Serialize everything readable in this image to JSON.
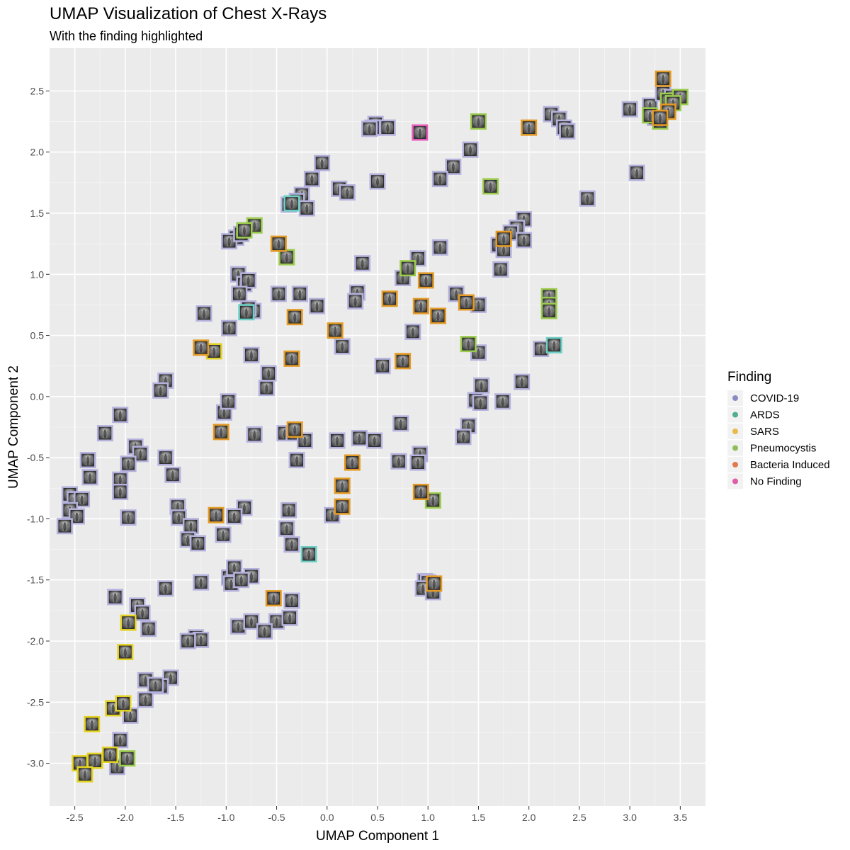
{
  "chart_data": {
    "type": "scatter",
    "title": "UMAP Visualization of Chest X-Rays",
    "subtitle": "With the finding highlighted",
    "xlabel": "UMAP Component 1",
    "ylabel": "UMAP Component 2",
    "xlim": [
      -2.75,
      3.75
    ],
    "ylim": [
      -3.35,
      2.85
    ],
    "x_ticks": [
      -2.5,
      -2.0,
      -1.5,
      -1.0,
      -0.5,
      0.0,
      0.5,
      1.0,
      1.5,
      2.0,
      2.5,
      3.0,
      3.5
    ],
    "x_tick_labels": [
      "-2.5",
      "-2.0",
      "-1.5",
      "-1.0",
      "-0.5",
      "0.0",
      "0.5",
      "1.0",
      "1.5",
      "2.0",
      "2.5",
      "3.0",
      "3.5"
    ],
    "y_ticks": [
      -3.0,
      -2.5,
      -2.0,
      -1.5,
      -1.0,
      -0.5,
      0.0,
      0.5,
      1.0,
      1.5,
      2.0,
      2.5
    ],
    "y_tick_labels": [
      "-3.0",
      "-2.5",
      "-2.0",
      "-1.5",
      "-1.0",
      "-0.5",
      "0.0",
      "0.5",
      "1.0",
      "1.5",
      "2.0",
      "2.5"
    ],
    "grid": true,
    "marker": "chest-xray-thumbnail",
    "legend": {
      "title": "Finding",
      "position": "right",
      "entries": [
        {
          "label": "COVID-19",
          "color": "#8B8BC4"
        },
        {
          "label": "ARDS",
          "color": "#52AE8F"
        },
        {
          "label": "SARS",
          "color": "#E9B949"
        },
        {
          "label": "Pneumocystis",
          "color": "#8DBF5B"
        },
        {
          "label": "Bacteria Induced",
          "color": "#E07A4C"
        },
        {
          "label": "No Finding",
          "color": "#DE5CA8"
        }
      ]
    },
    "series": [
      {
        "name": "COVID-19",
        "color": "#B4B2DC",
        "points": [
          [
            3.0,
            2.35
          ],
          [
            3.2,
            2.38
          ],
          [
            3.33,
            2.48
          ],
          [
            3.42,
            2.45
          ],
          [
            3.25,
            2.28
          ],
          [
            3.07,
            1.83
          ],
          [
            2.58,
            1.62
          ],
          [
            2.22,
            2.31
          ],
          [
            2.3,
            2.27
          ],
          [
            2.35,
            2.2
          ],
          [
            2.38,
            2.17
          ],
          [
            0.48,
            2.23
          ],
          [
            0.45,
            2.2
          ],
          [
            0.6,
            2.2
          ],
          [
            0.42,
            2.19
          ],
          [
            1.42,
            2.02
          ],
          [
            1.25,
            1.88
          ],
          [
            1.12,
            1.78
          ],
          [
            -0.05,
            1.91
          ],
          [
            -0.15,
            1.78
          ],
          [
            0.12,
            1.7
          ],
          [
            0.2,
            1.67
          ],
          [
            0.5,
            1.76
          ],
          [
            -0.25,
            1.65
          ],
          [
            -0.3,
            1.6
          ],
          [
            -0.38,
            1.57
          ],
          [
            -0.2,
            1.54
          ],
          [
            -0.9,
            1.3
          ],
          [
            -0.97,
            1.27
          ],
          [
            -0.85,
            1.33
          ],
          [
            1.95,
            1.45
          ],
          [
            1.88,
            1.38
          ],
          [
            1.82,
            1.34
          ],
          [
            1.95,
            1.28
          ],
          [
            1.7,
            1.24
          ],
          [
            1.75,
            1.2
          ],
          [
            1.12,
            1.22
          ],
          [
            0.9,
            1.13
          ],
          [
            0.35,
            1.09
          ],
          [
            1.72,
            1.04
          ],
          [
            0.75,
            0.97
          ],
          [
            -0.88,
            1.0
          ],
          [
            -0.82,
            0.92
          ],
          [
            -0.78,
            0.95
          ],
          [
            -0.87,
            0.84
          ],
          [
            -0.48,
            0.84
          ],
          [
            -0.27,
            0.84
          ],
          [
            -0.1,
            0.74
          ],
          [
            0.3,
            0.85
          ],
          [
            0.28,
            0.78
          ],
          [
            1.28,
            0.84
          ],
          [
            1.5,
            0.75
          ],
          [
            -1.22,
            0.68
          ],
          [
            -0.73,
            0.7
          ],
          [
            -0.78,
            0.72
          ],
          [
            -0.97,
            0.56
          ],
          [
            0.85,
            0.53
          ],
          [
            0.15,
            0.41
          ],
          [
            1.5,
            0.36
          ],
          [
            -0.75,
            0.34
          ],
          [
            0.55,
            0.25
          ],
          [
            2.12,
            0.39
          ],
          [
            -1.6,
            0.13
          ],
          [
            -1.65,
            0.05
          ],
          [
            -0.58,
            0.19
          ],
          [
            -0.6,
            0.07
          ],
          [
            1.53,
            0.09
          ],
          [
            1.47,
            -0.03
          ],
          [
            1.52,
            -0.05
          ],
          [
            1.74,
            -0.04
          ],
          [
            1.93,
            0.12
          ],
          [
            -2.05,
            -0.15
          ],
          [
            -1.02,
            -0.13
          ],
          [
            -0.98,
            -0.04
          ],
          [
            -2.2,
            -0.3
          ],
          [
            -0.72,
            -0.31
          ],
          [
            -0.42,
            -0.3
          ],
          [
            -0.33,
            -0.3
          ],
          [
            -0.22,
            -0.36
          ],
          [
            0.1,
            -0.36
          ],
          [
            0.32,
            -0.34
          ],
          [
            0.47,
            -0.36
          ],
          [
            0.73,
            -0.22
          ],
          [
            1.4,
            -0.24
          ],
          [
            1.35,
            -0.33
          ],
          [
            -1.9,
            -0.41
          ],
          [
            -1.85,
            -0.47
          ],
          [
            -1.97,
            -0.55
          ],
          [
            -1.6,
            -0.5
          ],
          [
            -2.37,
            -0.52
          ],
          [
            -2.35,
            -0.66
          ],
          [
            -1.53,
            -0.64
          ],
          [
            -2.05,
            -0.68
          ],
          [
            -2.05,
            -0.78
          ],
          [
            0.92,
            -0.47
          ],
          [
            0.9,
            -0.54
          ],
          [
            0.71,
            -0.53
          ],
          [
            -0.3,
            -0.52
          ],
          [
            -2.55,
            -0.8
          ],
          [
            -2.5,
            -0.84
          ],
          [
            -2.43,
            -0.84
          ],
          [
            -2.55,
            -0.93
          ],
          [
            -2.48,
            -0.98
          ],
          [
            -2.6,
            -1.06
          ],
          [
            -1.97,
            -0.99
          ],
          [
            -1.48,
            -0.9
          ],
          [
            -1.47,
            -0.99
          ],
          [
            -1.35,
            -1.06
          ],
          [
            -0.82,
            -0.91
          ],
          [
            -0.92,
            -0.98
          ],
          [
            -0.38,
            -0.93
          ],
          [
            -1.03,
            -1.13
          ],
          [
            0.05,
            -0.97
          ],
          [
            -0.4,
            -1.08
          ],
          [
            -1.38,
            -1.17
          ],
          [
            -1.28,
            -1.2
          ],
          [
            -0.35,
            -1.21
          ],
          [
            -0.97,
            -1.48
          ],
          [
            -0.92,
            -1.4
          ],
          [
            -0.75,
            -1.47
          ],
          [
            -1.6,
            -1.57
          ],
          [
            -1.25,
            -1.52
          ],
          [
            -0.95,
            -1.53
          ],
          [
            -0.85,
            -1.5
          ],
          [
            0.97,
            -1.51
          ],
          [
            1.0,
            -1.52
          ],
          [
            0.95,
            -1.57
          ],
          [
            1.05,
            -1.6
          ],
          [
            -2.1,
            -1.64
          ],
          [
            -1.88,
            -1.71
          ],
          [
            -1.83,
            -1.77
          ],
          [
            -0.35,
            -1.67
          ],
          [
            -1.77,
            -1.9
          ],
          [
            -0.88,
            -1.88
          ],
          [
            -0.75,
            -1.84
          ],
          [
            -0.5,
            -1.84
          ],
          [
            -0.62,
            -1.92
          ],
          [
            -0.37,
            -1.81
          ],
          [
            -1.3,
            -1.97
          ],
          [
            -1.25,
            -1.99
          ],
          [
            -1.38,
            -2.0
          ],
          [
            -1.8,
            -2.32
          ],
          [
            -1.55,
            -2.3
          ],
          [
            -1.65,
            -2.37
          ],
          [
            -1.7,
            -2.36
          ],
          [
            -1.8,
            -2.48
          ],
          [
            -1.95,
            -2.61
          ],
          [
            -2.05,
            -2.81
          ],
          [
            -2.08,
            -3.03
          ]
        ]
      },
      {
        "name": "ARDS",
        "color": "#6ECFC5",
        "points": [
          [
            -0.35,
            1.58
          ],
          [
            -0.8,
            0.69
          ],
          [
            2.25,
            0.42
          ],
          [
            -0.18,
            -1.29
          ]
        ]
      },
      {
        "name": "SARS",
        "color": "#E3D226",
        "points": [
          [
            -1.12,
            0.37
          ],
          [
            -1.97,
            -1.85
          ],
          [
            -2.0,
            -2.09
          ],
          [
            -2.12,
            -2.55
          ],
          [
            -2.02,
            -2.51
          ],
          [
            -2.33,
            -2.68
          ],
          [
            -2.15,
            -2.93
          ],
          [
            -2.45,
            -3.0
          ],
          [
            -2.3,
            -2.98
          ],
          [
            -2.4,
            -3.09
          ]
        ]
      },
      {
        "name": "Pneumocystis",
        "color": "#9BCB4E",
        "points": [
          [
            1.5,
            2.25
          ],
          [
            1.62,
            1.72
          ],
          [
            -0.72,
            1.4
          ],
          [
            -0.82,
            1.36
          ],
          [
            -0.4,
            1.14
          ],
          [
            0.8,
            1.05
          ],
          [
            2.2,
            0.82
          ],
          [
            2.2,
            0.75
          ],
          [
            2.2,
            0.7
          ],
          [
            1.4,
            0.43
          ],
          [
            1.05,
            -0.85
          ],
          [
            -1.98,
            -2.96
          ],
          [
            3.2,
            2.3
          ],
          [
            3.3,
            2.25
          ],
          [
            3.38,
            2.42
          ],
          [
            3.5,
            2.45
          ],
          [
            3.43,
            2.4
          ]
        ]
      },
      {
        "name": "Bacteria Induced",
        "color": "#E39A26",
        "points": [
          [
            3.33,
            2.6
          ],
          [
            3.38,
            2.33
          ],
          [
            3.3,
            2.28
          ],
          [
            2.0,
            2.2
          ],
          [
            1.75,
            1.29
          ],
          [
            -0.48,
            1.25
          ],
          [
            0.98,
            0.95
          ],
          [
            0.62,
            0.8
          ],
          [
            1.38,
            0.77
          ],
          [
            0.93,
            0.74
          ],
          [
            1.1,
            0.66
          ],
          [
            -0.32,
            0.65
          ],
          [
            0.08,
            0.54
          ],
          [
            -1.25,
            0.4
          ],
          [
            -0.35,
            0.31
          ],
          [
            0.75,
            0.29
          ],
          [
            -1.05,
            -0.29
          ],
          [
            -0.32,
            -0.27
          ],
          [
            0.25,
            -0.54
          ],
          [
            0.15,
            -0.73
          ],
          [
            0.93,
            -0.78
          ],
          [
            0.15,
            -0.9
          ],
          [
            -1.1,
            -0.97
          ],
          [
            -0.53,
            -1.65
          ],
          [
            1.06,
            -1.53
          ]
        ]
      },
      {
        "name": "No Finding",
        "color": "#E35DBA",
        "points": [
          [
            0.92,
            2.16
          ]
        ]
      }
    ]
  }
}
